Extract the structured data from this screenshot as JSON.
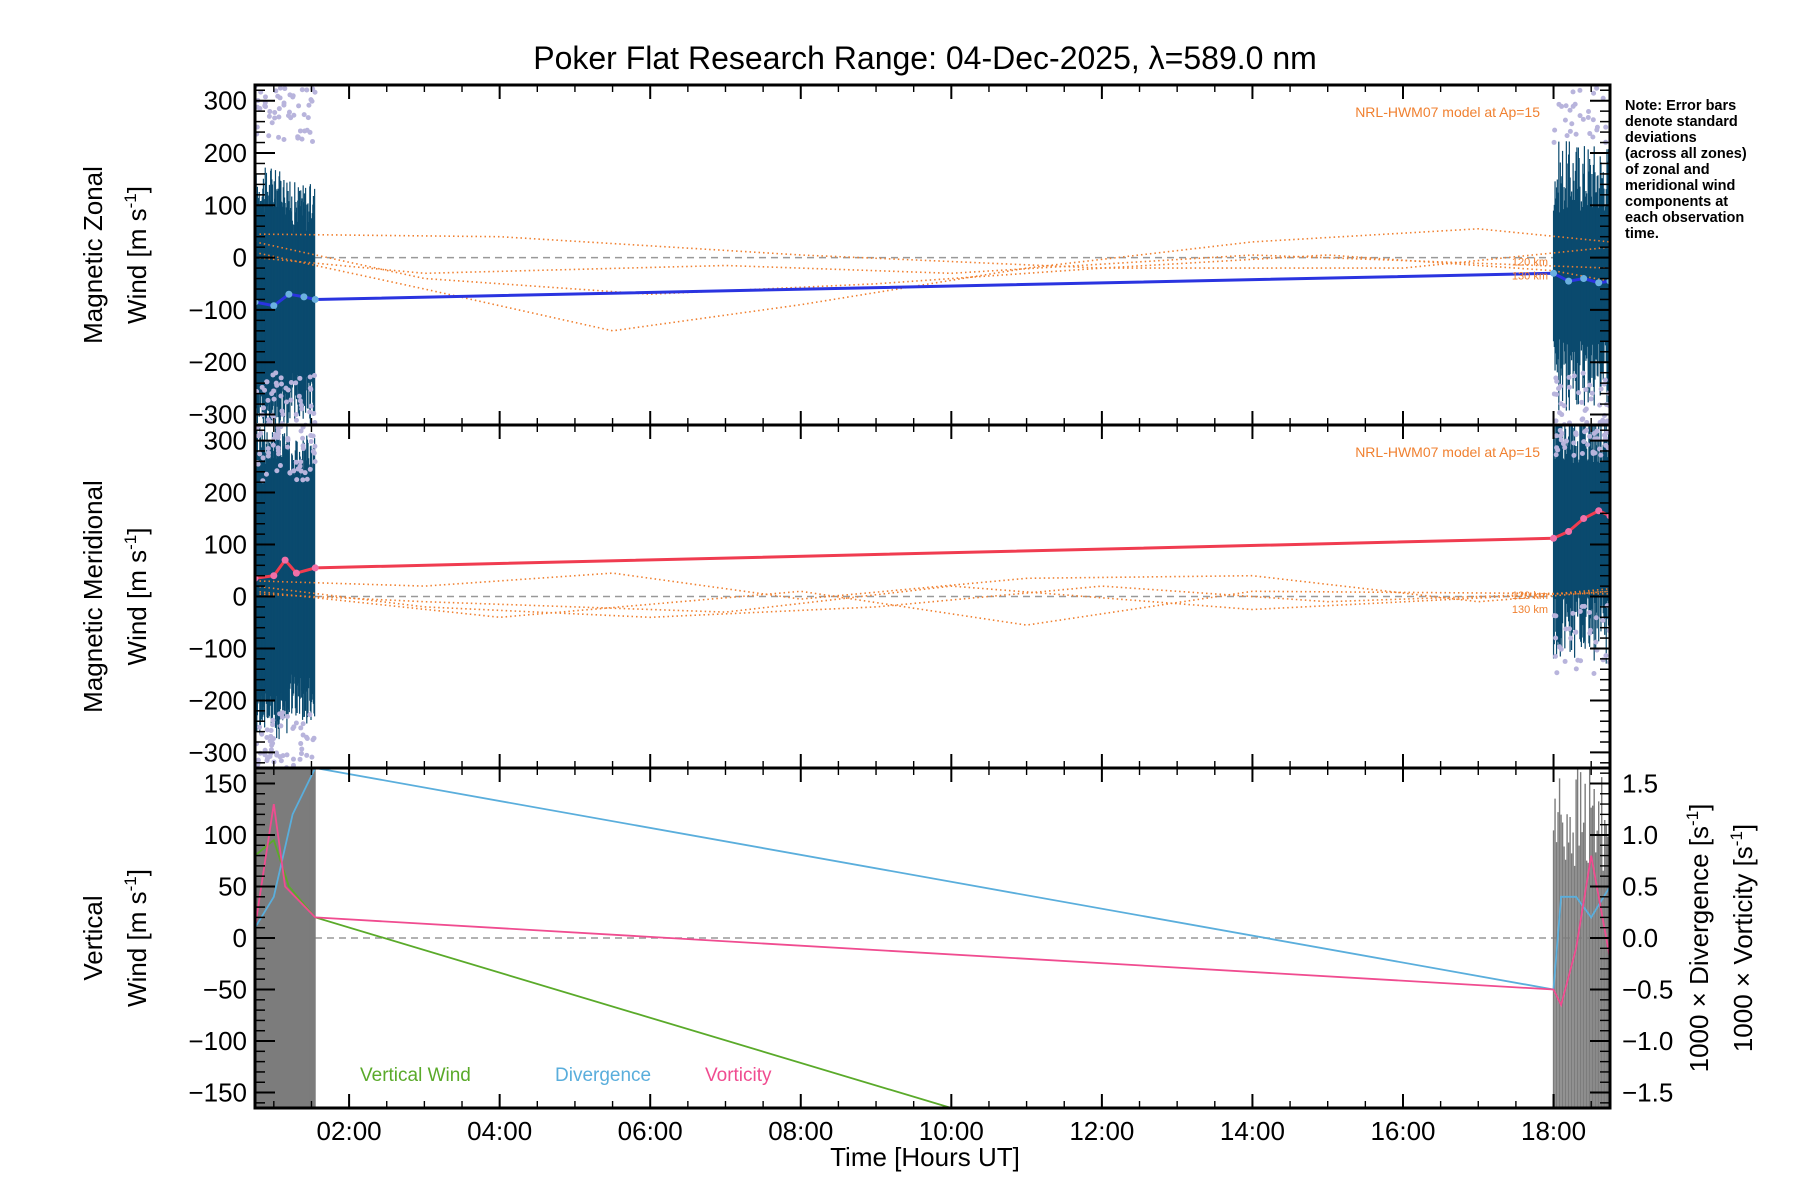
{
  "chart_data": {
    "type": "line",
    "title": "Poker Flat Research Range: 04-Dec-2025, λ=589.0 nm",
    "xlabel": "Time [Hours UT]",
    "x_ticks": [
      "02:00",
      "04:00",
      "06:00",
      "08:00",
      "10:00",
      "12:00",
      "14:00",
      "16:00",
      "18:00"
    ],
    "x_tick_hours": [
      2,
      4,
      6,
      8,
      10,
      12,
      14,
      16,
      18
    ],
    "xlim": [
      0.75,
      18.75
    ],
    "note": [
      "Note: Error bars",
      "denote standard",
      "deviations",
      "(across all zones)",
      "of zonal and",
      "meridional wind",
      "components at",
      "each observation",
      "time."
    ],
    "colors": {
      "zonal": "#2a34e0",
      "zonal_light": "#6ab0e0",
      "meridional": "#f03c50",
      "meridional_light": "#f070a8",
      "errorbar": "#0a4a6e",
      "outlier": "#b8b4dc",
      "model": "#f08030",
      "vertical": "#5aaa2a",
      "divergence": "#5aaedc",
      "vorticity": "#f04c90",
      "shade": "#7c7c7c",
      "zero": "#999999"
    },
    "panels": [
      {
        "name": "zonal",
        "ylabel_line1": "Magnetic Zonal",
        "ylabel_line2": "Wind [m s",
        "ylabel_sup": "-1",
        "ylabel_close": "]",
        "ylim": [
          -320,
          330
        ],
        "yticks": [
          -300,
          -200,
          -100,
          0,
          100,
          200,
          300
        ],
        "ytick_labels": [
          "−300",
          "−200",
          "−100",
          "0",
          "100",
          "200",
          "300"
        ],
        "model_label": "NRL-HWM07 model at Ap=15",
        "model_alt_labels": [
          "120 km",
          "130 km"
        ],
        "series": [
          {
            "name": "Zonal Wind",
            "x": [
              0.75,
              1.0,
              1.2,
              1.4,
              1.55,
              18.0,
              18.2,
              18.4,
              18.6,
              18.75
            ],
            "y": [
              -85,
              -92,
              -70,
              -75,
              -80,
              -30,
              -45,
              -40,
              -48,
              -45
            ]
          }
        ],
        "model_curves": [
          {
            "name": "zonal-model-a",
            "x": [
              0.75,
              3,
              5.5,
              8,
              11,
              14,
              17,
              18.75
            ],
            "y": [
              10,
              -60,
              -140,
              -90,
              -20,
              30,
              55,
              30
            ]
          },
          {
            "name": "zonal-model-b",
            "x": [
              0.75,
              3,
              6,
              9,
              12,
              15,
              18,
              18.75
            ],
            "y": [
              30,
              -40,
              -70,
              -50,
              -20,
              5,
              -25,
              -45
            ]
          },
          {
            "name": "zonal-model-c",
            "x": [
              0.75,
              4,
              8,
              12,
              16,
              18.75
            ],
            "y": [
              45,
              40,
              5,
              -20,
              -20,
              20
            ]
          },
          {
            "name": "zonal-model-d",
            "x": [
              0.75,
              3,
              7,
              10,
              14,
              18.75
            ],
            "y": [
              0,
              -30,
              -15,
              -30,
              5,
              -20
            ]
          }
        ]
      },
      {
        "name": "meridional",
        "ylabel_line1": "Magnetic Meridional",
        "ylabel_line2": "Wind [m s",
        "ylabel_sup": "-1",
        "ylabel_close": "]",
        "ylim": [
          -330,
          330
        ],
        "yticks": [
          -300,
          -200,
          -100,
          0,
          100,
          200,
          300
        ],
        "ytick_labels": [
          "−300",
          "−200",
          "−100",
          "0",
          "100",
          "200",
          "300"
        ],
        "model_label": "NRL-HWM07 model at Ap=15",
        "model_alt_labels": [
          "120 km",
          "130 km"
        ],
        "series": [
          {
            "name": "Meridional Wind",
            "x": [
              0.75,
              1.0,
              1.15,
              1.3,
              1.55,
              18.0,
              18.2,
              18.4,
              18.6,
              18.75
            ],
            "y": [
              35,
              40,
              70,
              45,
              55,
              112,
              125,
              150,
              165,
              155
            ]
          }
        ],
        "model_curves": [
          {
            "name": "meridional-model-a",
            "x": [
              0.75,
              3,
              5.5,
              8,
              11,
              14,
              17,
              18.75
            ],
            "y": [
              30,
              20,
              45,
              -5,
              35,
              40,
              -10,
              10
            ]
          },
          {
            "name": "meridional-model-b",
            "x": [
              0.75,
              3,
              6,
              9,
              12,
              15,
              18,
              18.75
            ],
            "y": [
              20,
              -20,
              -40,
              -20,
              20,
              -10,
              5,
              15
            ]
          },
          {
            "name": "meridional-model-c",
            "x": [
              0.75,
              4,
              8,
              11,
              14,
              18.75
            ],
            "y": [
              10,
              -40,
              10,
              -55,
              10,
              5
            ]
          },
          {
            "name": "meridional-model-d",
            "x": [
              0.75,
              3,
              7,
              10,
              14,
              18.75
            ],
            "y": [
              5,
              -10,
              -30,
              20,
              -25,
              10
            ]
          }
        ]
      },
      {
        "name": "vertical",
        "ylabel_line1": "Vertical",
        "ylabel_line2": "Wind [m s",
        "ylabel_sup": "-1",
        "ylabel_close": "]",
        "ylim": [
          -165,
          165
        ],
        "yticks": [
          -150,
          -100,
          -50,
          0,
          50,
          100,
          150
        ],
        "ytick_labels": [
          "−150",
          "−100",
          "−50",
          "0",
          "50",
          "100",
          "150"
        ],
        "right_ylim": [
          -1.65,
          1.65
        ],
        "right_yticks": [
          -1.5,
          -1.0,
          -0.5,
          0.0,
          0.5,
          1.0,
          1.5
        ],
        "right_ytick_labels": [
          "−1.5",
          "−1.0",
          "−0.5",
          "0.0",
          "0.5",
          "1.0",
          "1.5"
        ],
        "right_label_1_pre": "1000 × Divergence [s",
        "right_label_1_sup": "-1",
        "right_label_1_close": "]",
        "right_label_2_pre": "1000 × Vorticity [s",
        "right_label_2_sup": "-1",
        "right_label_2_close": "]",
        "legend": [
          "Vertical Wind",
          "Divergence",
          "Vorticity"
        ],
        "series": [
          {
            "name": "Vertical Wind",
            "axis": "left",
            "x": [
              0.75,
              1.0,
              1.2,
              1.55,
              10.0
            ],
            "y": [
              80,
              95,
              50,
              20,
              -165
            ]
          },
          {
            "name": "Divergence",
            "axis": "right",
            "x": [
              0.75,
              1.0,
              1.25,
              1.55,
              18.0,
              18.1,
              18.3,
              18.5,
              18.75
            ],
            "y": [
              0.1,
              0.4,
              1.2,
              1.65,
              -0.5,
              0.4,
              0.4,
              0.2,
              0.5
            ]
          },
          {
            "name": "Vorticity",
            "axis": "right",
            "x": [
              0.75,
              1.0,
              1.15,
              1.55,
              18.0,
              18.1,
              18.3,
              18.5,
              18.75
            ],
            "y": [
              0.1,
              1.3,
              0.5,
              0.2,
              -0.5,
              -0.65,
              -0.1,
              0.8,
              -0.2
            ]
          }
        ]
      }
    ]
  }
}
